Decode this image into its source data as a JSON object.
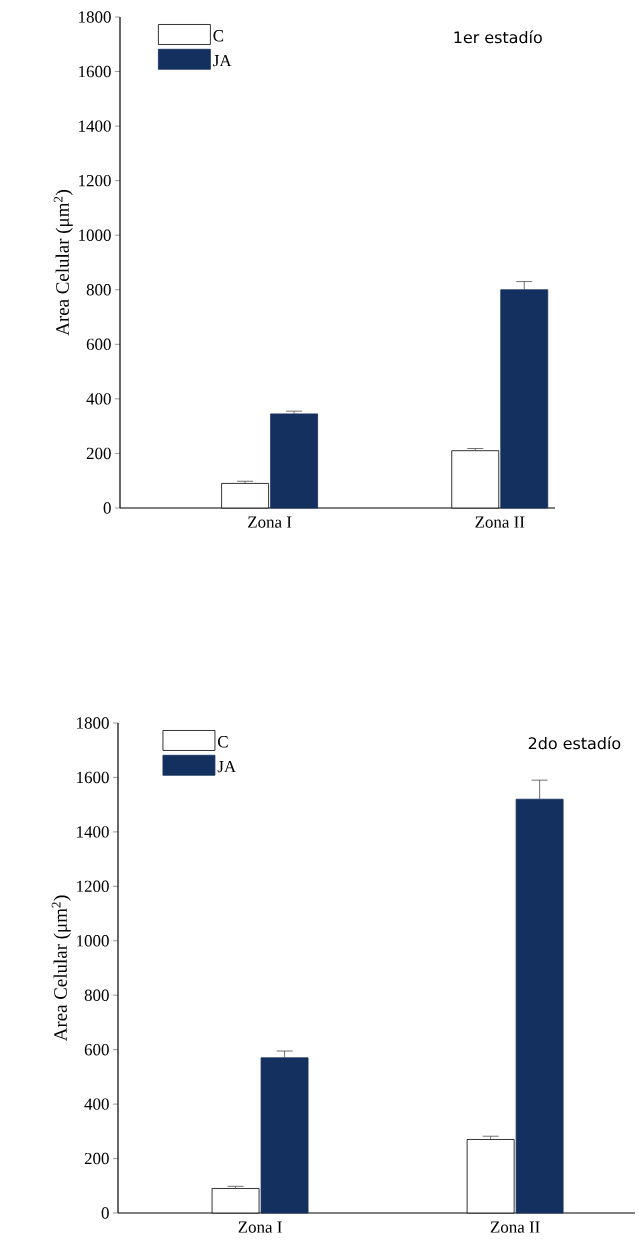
{
  "chart_data": [
    {
      "type": "bar",
      "title": "1er estadío",
      "ylabel": "Area Celular (μm$^{2}$)",
      "categories": [
        "Zona I",
        "Zona II"
      ],
      "series": [
        {
          "name": "C",
          "color": "#ffffff",
          "values": [
            90,
            210
          ],
          "errors": [
            8,
            8
          ]
        },
        {
          "name": "JA",
          "color": "#14305e",
          "values": [
            345,
            800
          ],
          "errors": [
            10,
            30
          ]
        }
      ],
      "ylim": [
        0,
        1800
      ],
      "yticks": [
        0,
        200,
        400,
        600,
        800,
        1000,
        1200,
        1400,
        1600,
        1800
      ],
      "legend": "top left",
      "grid": false
    },
    {
      "type": "bar",
      "title": "2do estadío",
      "ylabel": "Area Celular (μm$^{2}$)",
      "categories": [
        "Zona I",
        "Zona II"
      ],
      "series": [
        {
          "name": "C",
          "color": "#ffffff",
          "values": [
            90,
            270
          ],
          "errors": [
            8,
            12
          ]
        },
        {
          "name": "JA",
          "color": "#14305e",
          "values": [
            570,
            1520
          ],
          "errors": [
            25,
            70
          ]
        }
      ],
      "ylim": [
        0,
        1800
      ],
      "yticks": [
        0,
        200,
        400,
        600,
        800,
        1000,
        1200,
        1400,
        1600,
        1800
      ],
      "legend": "top left",
      "grid": false
    }
  ]
}
